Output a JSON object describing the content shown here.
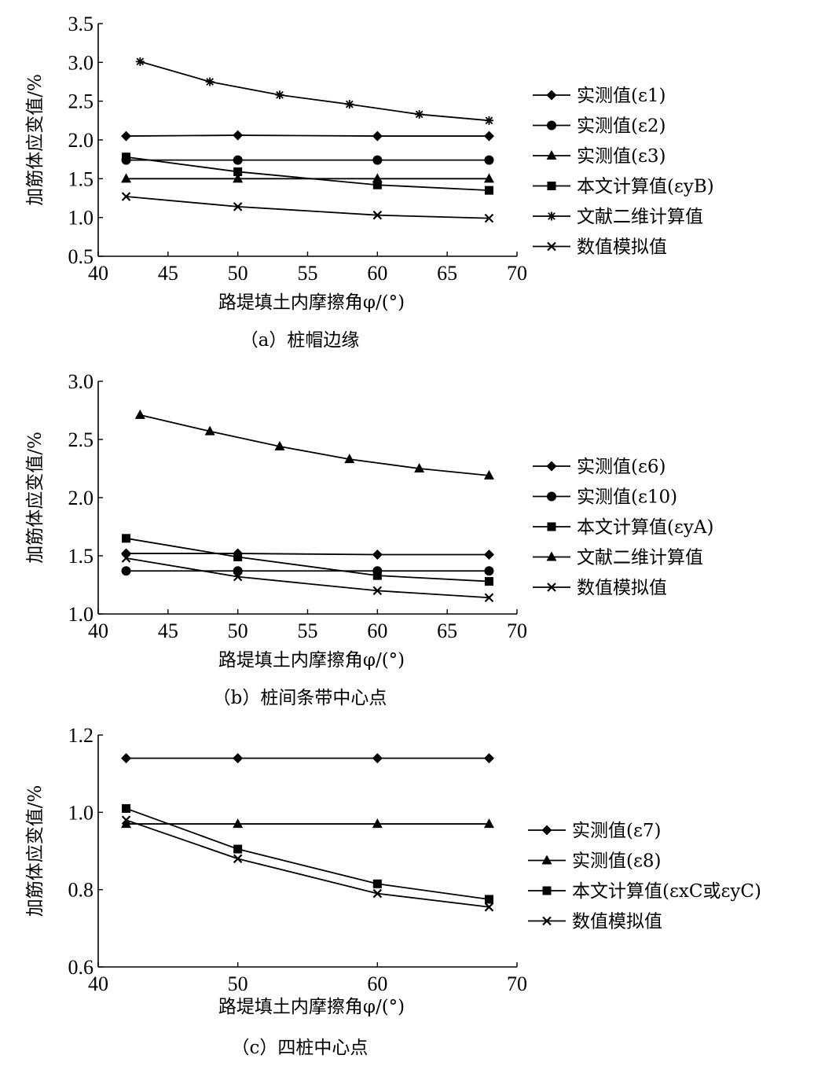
{
  "chart_data": [
    {
      "type": "line",
      "caption": "（a）桩帽边缘",
      "xlabel": "路堤填土内摩擦角φ/(°)",
      "ylabel": "加筋体应变值/%",
      "xlim": [
        40,
        70
      ],
      "ylim": [
        0.5,
        3.5
      ],
      "xticks": [
        40,
        45,
        50,
        55,
        60,
        65,
        70
      ],
      "yticks": [
        0.5,
        1.0,
        1.5,
        2.0,
        2.5,
        3.0,
        3.5
      ],
      "ytick_labels": [
        "0.5",
        "1.0",
        "1.5",
        "2.0",
        "2.5",
        "3.0",
        "3.5"
      ],
      "legend_position": "right",
      "series": [
        {
          "name": "实测值(ε1)",
          "marker": "diamond",
          "x": [
            42,
            50,
            60,
            68
          ],
          "y": [
            2.05,
            2.06,
            2.05,
            2.05
          ]
        },
        {
          "name": "实测值(ε2)",
          "marker": "circle",
          "x": [
            42,
            50,
            60,
            68
          ],
          "y": [
            1.74,
            1.74,
            1.74,
            1.74
          ]
        },
        {
          "name": "实测值(ε3)",
          "marker": "triangle",
          "x": [
            42,
            50,
            60,
            68
          ],
          "y": [
            1.5,
            1.5,
            1.5,
            1.5
          ]
        },
        {
          "name": "本文计算值(εyB)",
          "marker": "square",
          "x": [
            42,
            50,
            60,
            68
          ],
          "y": [
            1.78,
            1.59,
            1.42,
            1.35
          ]
        },
        {
          "name": "文献二维计算值",
          "marker": "star",
          "x": [
            43,
            48,
            53,
            58,
            63,
            68
          ],
          "y": [
            3.01,
            2.75,
            2.58,
            2.46,
            2.33,
            2.25
          ]
        },
        {
          "name": "数值模拟值",
          "marker": "x",
          "x": [
            42,
            50,
            60,
            68
          ],
          "y": [
            1.27,
            1.14,
            1.03,
            0.99
          ]
        }
      ]
    },
    {
      "type": "line",
      "caption": "（b）桩间条带中心点",
      "xlabel": "路堤填土内摩擦角φ/(°)",
      "ylabel": "加筋体应变值/%",
      "xlim": [
        40,
        70
      ],
      "ylim": [
        1.0,
        3.0
      ],
      "xticks": [
        40,
        45,
        50,
        55,
        60,
        65,
        70
      ],
      "yticks": [
        1.0,
        1.5,
        2.0,
        2.5,
        3.0
      ],
      "ytick_labels": [
        "1.0",
        "1.5",
        "2.0",
        "2.5",
        "3.0"
      ],
      "legend_position": "right",
      "series": [
        {
          "name": "实测值(ε6)",
          "marker": "diamond",
          "x": [
            42,
            50,
            60,
            68
          ],
          "y": [
            1.52,
            1.52,
            1.51,
            1.51
          ]
        },
        {
          "name": "实测值(ε10)",
          "marker": "circle",
          "x": [
            42,
            50,
            60,
            68
          ],
          "y": [
            1.37,
            1.37,
            1.37,
            1.37
          ]
        },
        {
          "name": "本文计算值(εyA)",
          "marker": "square",
          "x": [
            42,
            50,
            60,
            68
          ],
          "y": [
            1.65,
            1.49,
            1.33,
            1.28
          ]
        },
        {
          "name": "文献二维计算值",
          "marker": "triangle",
          "x": [
            43,
            48,
            53,
            58,
            63,
            68
          ],
          "y": [
            2.71,
            2.57,
            2.44,
            2.33,
            2.25,
            2.19
          ]
        },
        {
          "name": "数值模拟值",
          "marker": "x",
          "x": [
            42,
            50,
            60,
            68
          ],
          "y": [
            1.48,
            1.32,
            1.2,
            1.14
          ]
        }
      ]
    },
    {
      "type": "line",
      "caption": "（c）四桩中心点",
      "xlabel": "路堤填土内摩擦角φ/(°)",
      "ylabel": "加筋体应变值/%",
      "xlim": [
        40,
        70
      ],
      "ylim": [
        0.6,
        1.2
      ],
      "xticks": [
        40,
        50,
        60,
        70
      ],
      "yticks": [
        0.6,
        0.8,
        1.0,
        1.2
      ],
      "ytick_labels": [
        "0.6",
        "0.8",
        "1.0",
        "1.2"
      ],
      "legend_position": "right",
      "series": [
        {
          "name": "实测值(ε7)",
          "marker": "diamond",
          "x": [
            42,
            50,
            60,
            68
          ],
          "y": [
            1.14,
            1.14,
            1.14,
            1.14
          ]
        },
        {
          "name": "实测值(ε8)",
          "marker": "triangle",
          "x": [
            42,
            50,
            60,
            68
          ],
          "y": [
            0.97,
            0.97,
            0.97,
            0.97
          ]
        },
        {
          "name": "本文计算值(εxC或εyC)",
          "marker": "square",
          "x": [
            42,
            50,
            60,
            68
          ],
          "y": [
            1.01,
            0.905,
            0.815,
            0.775
          ]
        },
        {
          "name": "数值模拟值",
          "marker": "x",
          "x": [
            42,
            50,
            60,
            68
          ],
          "y": [
            0.98,
            0.88,
            0.79,
            0.755
          ]
        }
      ]
    }
  ]
}
